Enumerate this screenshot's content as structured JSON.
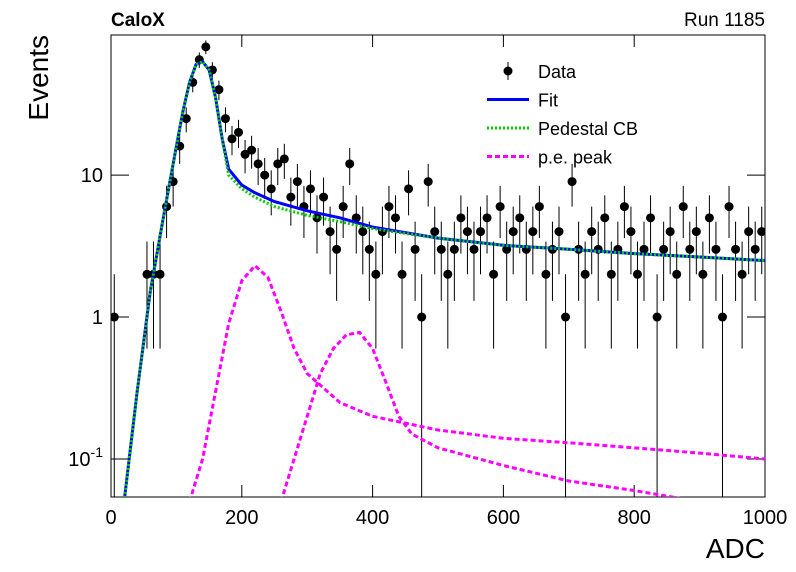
{
  "chart_data": {
    "type": "scatter",
    "title": "CaloX",
    "subtitle": "Run 1185",
    "x_label": "ADC",
    "y_label": "Events",
    "log_y": true,
    "xlim": [
      0,
      1000
    ],
    "ylim": [
      0.054,
      97
    ],
    "xticks": [
      0,
      200,
      400,
      600,
      800,
      1000
    ],
    "yticks": [
      {
        "value": 0.1,
        "label": "10",
        "exponent": "-1"
      },
      1,
      10
    ],
    "legend": "top-right",
    "data": {
      "name": "Data",
      "color": "#000000",
      "x": [
        5,
        15,
        25,
        35,
        45,
        55,
        65,
        75,
        85,
        95,
        105,
        115,
        125,
        135,
        145,
        155,
        165,
        175,
        185,
        195,
        205,
        215,
        225,
        235,
        245,
        255,
        265,
        275,
        285,
        295,
        305,
        315,
        325,
        335,
        345,
        355,
        365,
        375,
        385,
        395,
        405,
        415,
        425,
        435,
        445,
        455,
        465,
        475,
        485,
        495,
        505,
        515,
        525,
        535,
        545,
        555,
        565,
        575,
        585,
        595,
        605,
        615,
        625,
        635,
        645,
        655,
        665,
        675,
        685,
        695,
        705,
        715,
        725,
        735,
        745,
        755,
        765,
        775,
        785,
        795,
        805,
        815,
        825,
        835,
        845,
        855,
        865,
        875,
        885,
        895,
        905,
        915,
        925,
        935,
        945,
        955,
        965,
        975,
        985,
        995
      ],
      "values": [
        1,
        null,
        null,
        null,
        null,
        2,
        2,
        2,
        6,
        9,
        16,
        25,
        45,
        65,
        80,
        55,
        40,
        25,
        18,
        20,
        14,
        15,
        12,
        10,
        8,
        12,
        13,
        7,
        9,
        6,
        8,
        5,
        7,
        4,
        3,
        6,
        12,
        5,
        4,
        3,
        2,
        4,
        6,
        5,
        2,
        8,
        3,
        1,
        9,
        4,
        3,
        2,
        3,
        5,
        4,
        3,
        4,
        5,
        2,
        6,
        3,
        4,
        5,
        3,
        4,
        6,
        2,
        3,
        4,
        1,
        9,
        3,
        2,
        4,
        3,
        5,
        2,
        3,
        6,
        4,
        2,
        3,
        5,
        1,
        3,
        4,
        2,
        6,
        3,
        4,
        2,
        5,
        3,
        1,
        6,
        3,
        2,
        4,
        3,
        4
      ],
      "errors": [
        1,
        null,
        null,
        null,
        null,
        1.4,
        1.4,
        1.4,
        2.4,
        3,
        4,
        5,
        6.7,
        8.1,
        8.9,
        7.4,
        6.3,
        5,
        4.2,
        4.5,
        3.7,
        3.9,
        3.5,
        3.2,
        2.8,
        3.5,
        3.6,
        2.6,
        3,
        2.4,
        2.8,
        2.2,
        2.6,
        2,
        1.7,
        2.4,
        3.5,
        2.2,
        2,
        1.7,
        1.4,
        2,
        2.4,
        2.2,
        1.4,
        2.8,
        1.7,
        1,
        3,
        2,
        1.7,
        1.4,
        1.7,
        2.2,
        2,
        1.7,
        2,
        2.2,
        1.4,
        2.4,
        1.7,
        2,
        2.2,
        1.7,
        2,
        2.4,
        1.4,
        1.7,
        2,
        1,
        3,
        1.7,
        1.4,
        2,
        1.7,
        2.2,
        1.4,
        1.7,
        2.4,
        2,
        1.4,
        1.7,
        2.2,
        1,
        1.7,
        2,
        1.4,
        2.4,
        1.7,
        2,
        1.4,
        2.2,
        1.7,
        1,
        2.4,
        1.7,
        1.4,
        2,
        1.7,
        2
      ]
    },
    "series": [
      {
        "name": "Fit",
        "color": "#0000ff",
        "style": "solid",
        "x": [
          20,
          40,
          60,
          80,
          100,
          110,
          120,
          130,
          140,
          150,
          160,
          170,
          180,
          200,
          220,
          250,
          300,
          350,
          400,
          500,
          600,
          700,
          800,
          900,
          1000
        ],
        "values": [
          0.05,
          0.3,
          1.5,
          5,
          16,
          28,
          45,
          60,
          63,
          55,
          35,
          18,
          11,
          8.5,
          7.5,
          6.5,
          5.6,
          5,
          4.3,
          3.6,
          3.2,
          3,
          2.8,
          2.65,
          2.5
        ]
      },
      {
        "name": "Pedestal CB",
        "color": "#00cc00",
        "style": "dotted",
        "x": [
          20,
          40,
          60,
          80,
          100,
          110,
          120,
          130,
          140,
          150,
          160,
          170,
          180,
          200,
          220,
          250,
          300,
          350,
          400,
          500,
          600,
          700,
          800,
          900,
          1000
        ],
        "values": [
          0.05,
          0.3,
          1.5,
          5,
          16,
          28,
          45,
          60,
          63,
          55,
          35,
          18,
          10,
          8,
          7,
          6,
          5.2,
          4.7,
          4.2,
          3.6,
          3.2,
          3,
          2.8,
          2.65,
          2.5
        ]
      },
      {
        "name": "p.e. peak",
        "color": "#ff00ff",
        "style": "dashed",
        "x": [
          120,
          140,
          160,
          180,
          200,
          220,
          240,
          260,
          280,
          300,
          350,
          400,
          500,
          600,
          700,
          800,
          900,
          1000,
          null,
          260,
          280,
          300,
          320,
          340,
          360,
          380,
          400,
          420,
          440,
          460,
          500,
          600,
          700,
          800,
          900
        ],
        "values": [
          0.05,
          0.1,
          0.3,
          0.9,
          1.8,
          2.3,
          1.9,
          1.1,
          0.6,
          0.4,
          0.25,
          0.2,
          0.16,
          0.14,
          0.13,
          0.12,
          0.11,
          0.1,
          null,
          0.05,
          0.1,
          0.2,
          0.4,
          0.6,
          0.75,
          0.78,
          0.6,
          0.35,
          0.2,
          0.15,
          0.12,
          0.09,
          0.07,
          0.06,
          0.05
        ]
      }
    ]
  }
}
